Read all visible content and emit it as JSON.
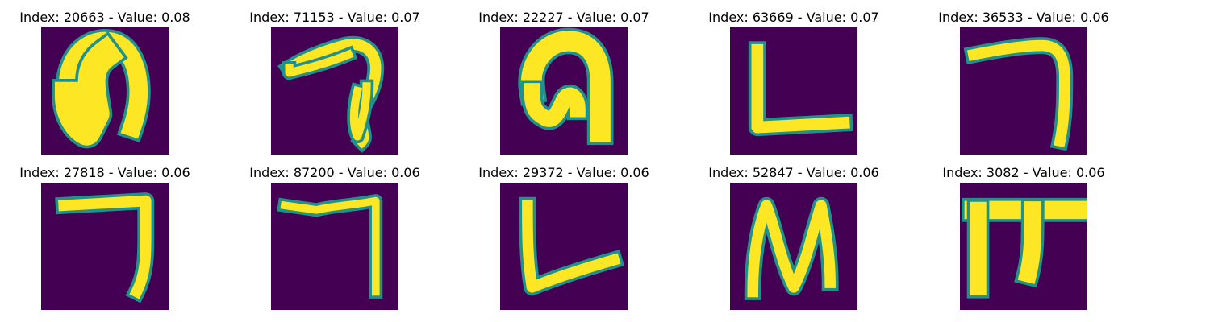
{
  "figure": {
    "panels": [
      {
        "label": "Index: 20663 - Value: 0.08",
        "index": 20663,
        "value": 0.08,
        "glyph": "arch-filled"
      },
      {
        "label": "Index: 71153 - Value: 0.07",
        "index": 71153,
        "value": 0.07,
        "glyph": "hook-loop"
      },
      {
        "label": "Index: 22227 - Value: 0.07",
        "index": 22227,
        "value": 0.07,
        "glyph": "arch-curl"
      },
      {
        "label": "Index: 63669 - Value: 0.07",
        "index": 63669,
        "value": 0.07,
        "glyph": "L-shape"
      },
      {
        "label": "Index: 36533 - Value: 0.06",
        "index": 36533,
        "value": 0.06,
        "glyph": "hook-right"
      },
      {
        "label": "Index: 27818 - Value: 0.06",
        "index": 27818,
        "value": 0.06,
        "glyph": "seven-bracket"
      },
      {
        "label": "Index: 87200 - Value: 0.06",
        "index": 87200,
        "value": 0.06,
        "glyph": "seven-bracket-thin"
      },
      {
        "label": "Index: 29372 - Value: 0.06",
        "index": 29372,
        "value": 0.06,
        "glyph": "L-slanted"
      },
      {
        "label": "Index: 52847 - Value: 0.06",
        "index": 52847,
        "value": 0.06,
        "glyph": "N-zigzag"
      },
      {
        "label": "Index: 3082 - Value: 0.06",
        "index": 3082,
        "value": 0.06,
        "glyph": "pi-shape"
      }
    ]
  },
  "colors": {
    "background": "#440154",
    "mid": "#21918c",
    "stroke": "#fde725"
  }
}
